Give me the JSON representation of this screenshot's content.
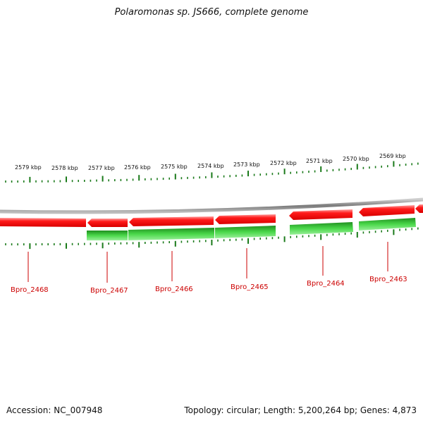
{
  "title": "Polaromonas sp. JS666, complete genome",
  "scale_labels": [
    "2579 kbp",
    "2578 kbp",
    "2577 kbp",
    "2576 kbp",
    "2575 kbp",
    "2574 kbp",
    "2573 kbp",
    "2572 kbp",
    "2571 kbp",
    "2570 kbp",
    "2569 kbp"
  ],
  "gene_labels": [
    "Bpro_2468",
    "Bpro_2467",
    "Bpro_2466",
    "Bpro_2465",
    "Bpro_2464",
    "Bpro_2463"
  ],
  "colors": {
    "reverse_strand": "#ff2020",
    "forward_strand": "#33cc33",
    "backbone": "#8a8a8a",
    "ticks": "#1a7a1a",
    "labels": "#cc0000"
  },
  "footer": {
    "accession": "Accession: NC_007948",
    "summary": "Topology: circular; Length: 5,200,264 bp; Genes: 4,873"
  }
}
